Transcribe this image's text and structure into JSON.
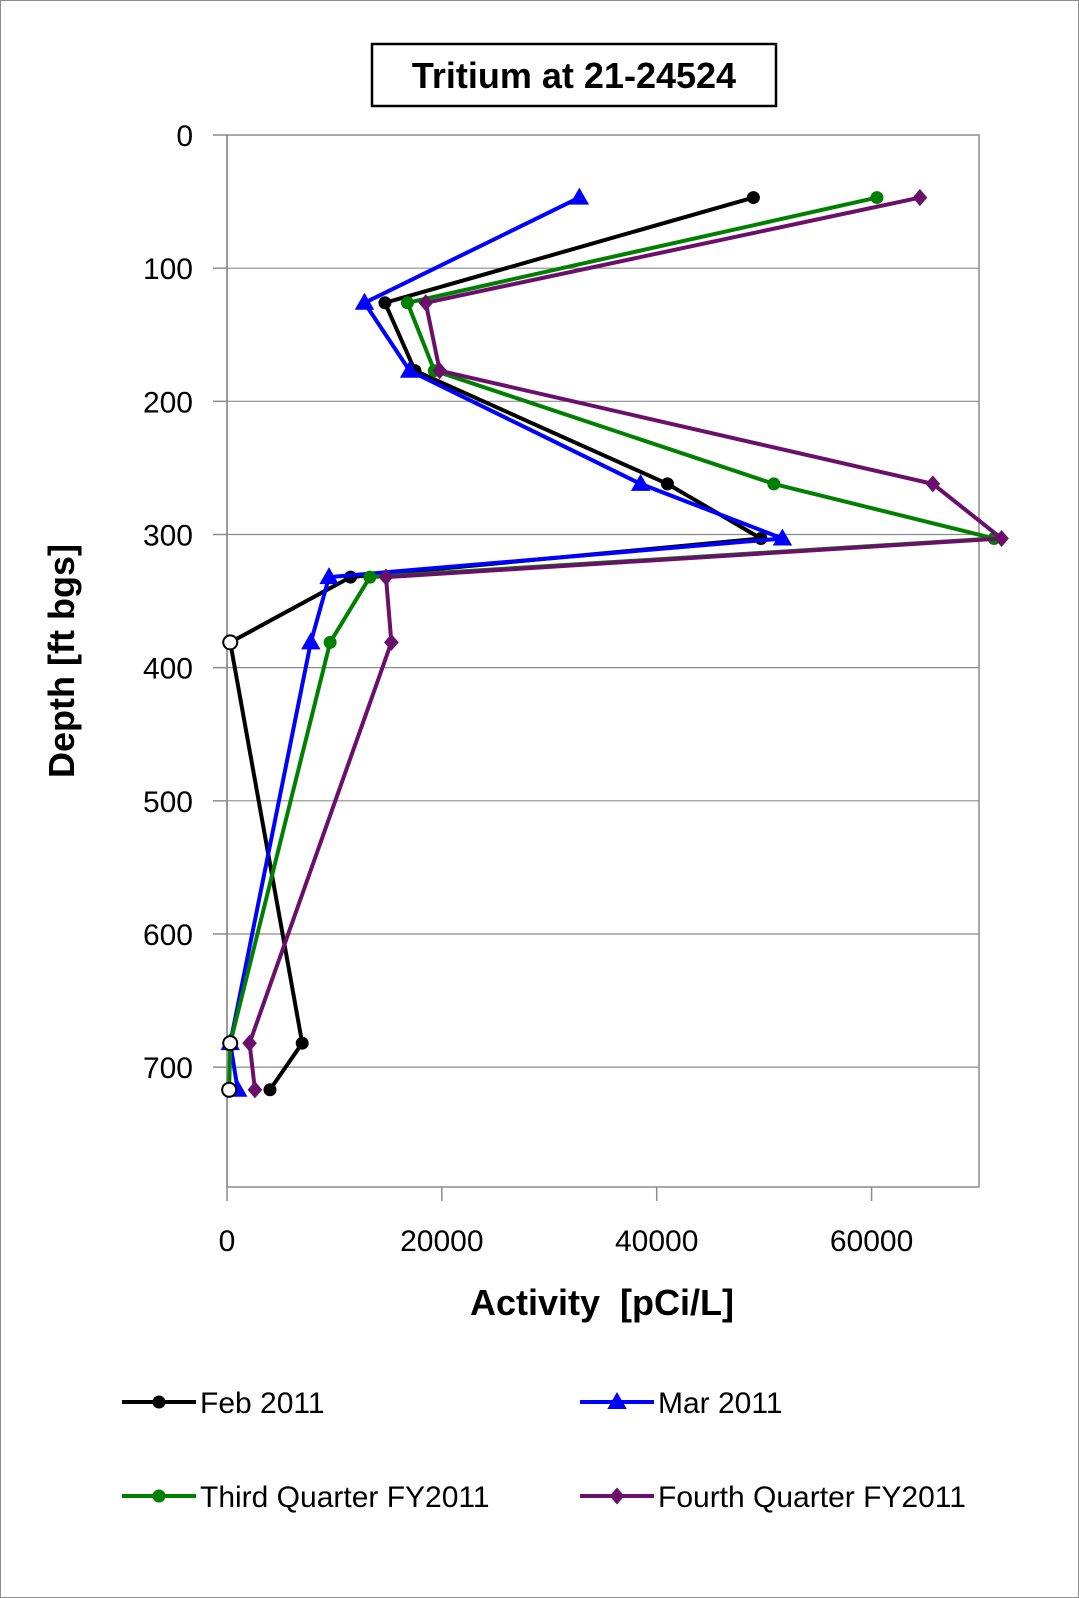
{
  "chart_data": {
    "type": "line",
    "title": "Tritium at 21-24524",
    "xlabel": "Activity  [pCi/L]",
    "ylabel": "Depth [ft bgs]",
    "xlim": [
      0,
      70000
    ],
    "ylim": [
      0,
      790
    ],
    "y_inverted": true,
    "x_ticks": [
      "0",
      "20000",
      "40000",
      "60000"
    ],
    "x_tick_values": [
      0,
      20000,
      40000,
      60000
    ],
    "y_ticks": [
      "0",
      "100",
      "200",
      "300",
      "400",
      "500",
      "600",
      "700"
    ],
    "y_tick_values": [
      0,
      100,
      200,
      300,
      400,
      500,
      600,
      700
    ],
    "grid": "horizontal",
    "legend_position": "bottom",
    "colors": {
      "frame": "#8c8c8c",
      "grid": "#8c8c8c"
    },
    "series": [
      {
        "name": "Feb 2011",
        "color": "#000000",
        "marker": "circle",
        "points": [
          {
            "activity": 49000,
            "depth": 47
          },
          {
            "activity": 14700,
            "depth": 126
          },
          {
            "activity": 17500,
            "depth": 177
          },
          {
            "activity": 41000,
            "depth": 262
          },
          {
            "activity": 49700,
            "depth": 303
          },
          {
            "activity": 11500,
            "depth": 332
          },
          {
            "activity": 300,
            "depth": 381,
            "open": true
          },
          {
            "activity": 7000,
            "depth": 682
          },
          {
            "activity": 4000,
            "depth": 717
          }
        ]
      },
      {
        "name": "Mar 2011",
        "color": "#0000ff",
        "marker": "triangle",
        "points": [
          {
            "activity": 32800,
            "depth": 47
          },
          {
            "activity": 12800,
            "depth": 126
          },
          {
            "activity": 17000,
            "depth": 177
          },
          {
            "activity": 38500,
            "depth": 262
          },
          {
            "activity": 51700,
            "depth": 303
          },
          {
            "activity": 9500,
            "depth": 332
          },
          {
            "activity": 7800,
            "depth": 381
          },
          {
            "activity": 300,
            "depth": 682,
            "open": true
          },
          {
            "activity": 1000,
            "depth": 717
          }
        ]
      },
      {
        "name": "Third Quarter FY2011",
        "color": "#008000",
        "marker": "circle",
        "points": [
          {
            "activity": 60500,
            "depth": 47
          },
          {
            "activity": 16800,
            "depth": 126
          },
          {
            "activity": 19300,
            "depth": 177
          },
          {
            "activity": 50900,
            "depth": 262
          },
          {
            "activity": 71400,
            "depth": 303
          },
          {
            "activity": 13300,
            "depth": 332
          },
          {
            "activity": 9600,
            "depth": 381
          },
          {
            "activity": 300,
            "depth": 682,
            "open": true
          },
          {
            "activity": 200,
            "depth": 717,
            "open": true
          }
        ]
      },
      {
        "name": "Fourth Quarter FY2011",
        "color": "#6a0f6a",
        "marker": "diamond",
        "points": [
          {
            "activity": 64500,
            "depth": 47
          },
          {
            "activity": 18500,
            "depth": 126
          },
          {
            "activity": 19800,
            "depth": 177
          },
          {
            "activity": 65700,
            "depth": 262
          },
          {
            "activity": 72100,
            "depth": 303
          },
          {
            "activity": 14800,
            "depth": 332
          },
          {
            "activity": 15300,
            "depth": 381
          },
          {
            "activity": 2100,
            "depth": 682
          },
          {
            "activity": 2600,
            "depth": 717
          }
        ]
      }
    ]
  }
}
